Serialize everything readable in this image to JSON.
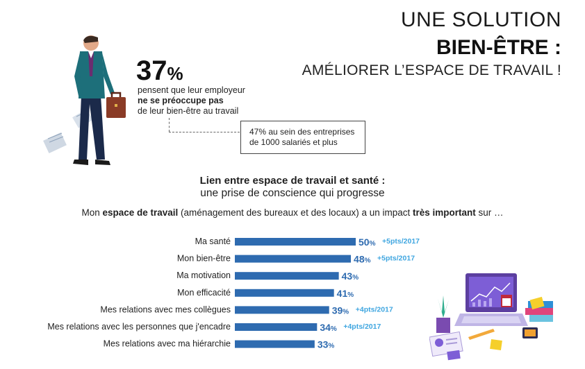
{
  "title": {
    "line1": "UNE SOLUTION",
    "line2": "BIEN-ÊTRE :",
    "line3": "AMÉLIORER L’ESPACE DE TRAVAIL !"
  },
  "stat": {
    "value": "37",
    "sign": "%",
    "desc_line1": "pensent que leur employeur",
    "desc_line2": "ne se préoccupe pas",
    "desc_line3": "de leur bien-être au travail",
    "note_line1": "47% au sein des entreprises",
    "note_line2": "de  1000 salariés et plus"
  },
  "section": {
    "heading": "Lien entre espace de travail et santé :",
    "subheading": "une prise de conscience qui progresse",
    "question_pre": "Mon ",
    "question_bold1": "espace de travail",
    "question_mid": " (aménagement des bureaux et des locaux) a un impact ",
    "question_bold2": "très important",
    "question_post": " sur …"
  },
  "colors": {
    "bar": "#2e6bb0",
    "delta": "#3fa6e0"
  },
  "chart_data": {
    "type": "bar",
    "orientation": "horizontal",
    "categories": [
      "Ma santé",
      "Mon bien-être",
      "Ma motivation",
      "Mon efficacité",
      "Mes relations avec mes collègues",
      "Mes relations avec les personnes que j'encadre",
      "Mes relations avec ma hiérarchie"
    ],
    "values": [
      50,
      48,
      43,
      41,
      39,
      34,
      33
    ],
    "value_labels": [
      "50",
      "48",
      "43",
      "41",
      "39",
      "34",
      "33"
    ],
    "value_suffix": "%",
    "deltas": [
      "+5pts/2017",
      "+5pts/2017",
      "",
      "",
      "+4pts/2017",
      "+4pts/2017",
      ""
    ],
    "xlim": [
      0,
      50
    ]
  }
}
